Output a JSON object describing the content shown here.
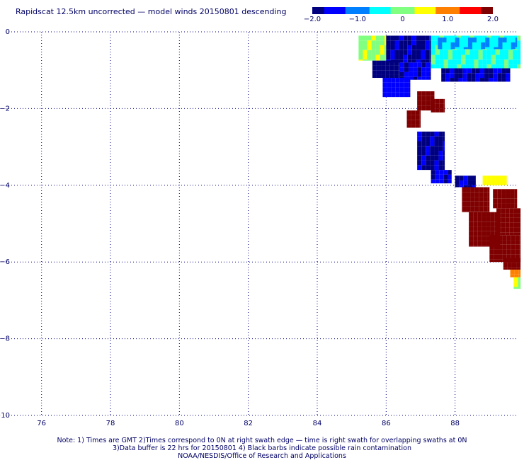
{
  "title": "Rapidscat 12.5km uncorrected — model winds 20150801 descending",
  "colorbar": {
    "range": [
      -2.0,
      2.0
    ],
    "ticks": [
      {
        "value": -2.0,
        "label": "−2.0"
      },
      {
        "value": -1.0,
        "label": "−1.0"
      },
      {
        "value": 0,
        "label": "0"
      },
      {
        "value": 1.0,
        "label": "1.0"
      },
      {
        "value": 2.0,
        "label": "2.0"
      }
    ],
    "colors": [
      "#00007f",
      "#0000ff",
      "#0080ff",
      "#00ffff",
      "#80ff80",
      "#ffff00",
      "#ff8000",
      "#ff0000",
      "#7f0000"
    ]
  },
  "notes": [
    "Note: 1) Times are GMT 2)Times correspond to 0N at right swath edge — time is right swath for overlapping swaths at 0N",
    "3)Data buffer is 22 hrs for 20150801 4) Black barbs indicate possible rain contamination",
    "NOAA/NESDIS/Office of Research and Applications"
  ],
  "chart_data": {
    "type": "heatmap",
    "title": "Rapidscat 12.5km uncorrected — model winds 20150801 descending",
    "xlim": [
      75,
      90
    ],
    "ylim": [
      -10,
      0
    ],
    "x_ticks": [
      76,
      78,
      80,
      82,
      84,
      86,
      88
    ],
    "y_ticks": [
      {
        "value": 0,
        "label": "0"
      },
      {
        "value": -2,
        "label": "−2"
      },
      {
        "value": -4,
        "label": "−4"
      },
      {
        "value": -6,
        "label": "−6"
      },
      {
        "value": -8,
        "label": "−8"
      },
      {
        "value": -10,
        "label": "−10"
      }
    ],
    "grid": true,
    "value_range": [
      -2.0,
      2.0
    ],
    "cell_size_deg": 0.125,
    "blocks": [
      {
        "x": [
          85.2,
          86.1
        ],
        "y": [
          -0.75,
          -0.1
        ],
        "value": 0.1
      },
      {
        "x": [
          86.0,
          87.3
        ],
        "y": [
          -0.8,
          -0.1
        ],
        "value": -1.9
      },
      {
        "x": [
          87.3,
          89.9
        ],
        "y": [
          -0.95,
          -0.1
        ],
        "value": -0.4
      },
      {
        "x": [
          87.5,
          89.8
        ],
        "y": [
          -0.45,
          -0.15
        ],
        "value": -0.7
      },
      {
        "x": [
          85.6,
          86.4
        ],
        "y": [
          -1.2,
          -0.75
        ],
        "value": -2.0
      },
      {
        "x": [
          86.4,
          87.3
        ],
        "y": [
          -1.25,
          -0.8
        ],
        "value": -1.6
      },
      {
        "x": [
          87.6,
          89.6
        ],
        "y": [
          -1.3,
          -0.95
        ],
        "value": -1.8
      },
      {
        "x": [
          85.9,
          86.7
        ],
        "y": [
          -1.7,
          -1.2
        ],
        "value": -1.5
      },
      {
        "x": [
          86.9,
          87.4
        ],
        "y": [
          -2.05,
          -1.55
        ],
        "value": 2.0
      },
      {
        "x": [
          87.3,
          87.7
        ],
        "y": [
          -2.1,
          -1.75
        ],
        "value": 2.0
      },
      {
        "x": [
          86.6,
          87.0
        ],
        "y": [
          -2.5,
          -2.05
        ],
        "value": 2.0
      },
      {
        "x": [
          86.9,
          87.7
        ],
        "y": [
          -3.6,
          -2.6
        ],
        "value": -1.9
      },
      {
        "x": [
          87.3,
          87.9
        ],
        "y": [
          -3.95,
          -3.6
        ],
        "value": -1.6
      },
      {
        "x": [
          88.0,
          88.6
        ],
        "y": [
          -4.05,
          -3.75
        ],
        "value": -1.8
      },
      {
        "x": [
          88.8,
          89.5
        ],
        "y": [
          -4.0,
          -3.75
        ],
        "value": 0.5
      },
      {
        "x": [
          88.2,
          89.0
        ],
        "y": [
          -4.7,
          -4.05
        ],
        "value": 2.0
      },
      {
        "x": [
          89.1,
          89.8
        ],
        "y": [
          -4.6,
          -4.1
        ],
        "value": 2.0
      },
      {
        "x": [
          88.4,
          89.3
        ],
        "y": [
          -5.6,
          -4.7
        ],
        "value": 2.0
      },
      {
        "x": [
          89.2,
          89.9
        ],
        "y": [
          -5.3,
          -4.6
        ],
        "value": 2.0
      },
      {
        "x": [
          89.0,
          89.9
        ],
        "y": [
          -6.0,
          -5.3
        ],
        "value": 2.0
      },
      {
        "x": [
          89.4,
          89.9
        ],
        "y": [
          -6.2,
          -5.9
        ],
        "value": 2.0
      },
      {
        "x": [
          89.6,
          89.9
        ],
        "y": [
          -6.4,
          -6.2
        ],
        "value": 1.0
      },
      {
        "x": [
          89.7,
          89.9
        ],
        "y": [
          -6.7,
          -6.4
        ],
        "value": 0.3
      }
    ]
  }
}
